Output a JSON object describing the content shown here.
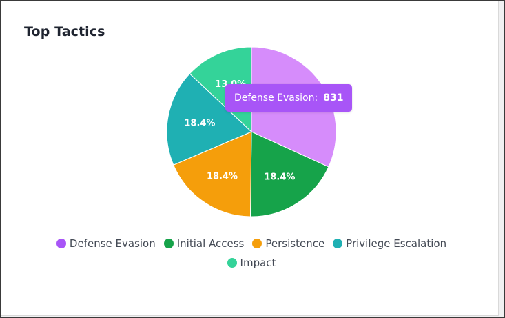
{
  "card": {
    "title": "Top Tactics"
  },
  "tooltip": {
    "label": "Defense Evasion:",
    "value": "831"
  },
  "chart_data": {
    "type": "pie",
    "title": "Top Tactics",
    "legend_position": "bottom",
    "slices": [
      {
        "name": "Defense Evasion",
        "percent": 31.8,
        "value": 831,
        "label": "",
        "color": "#d68cfb",
        "legend_color": "#a855f7"
      },
      {
        "name": "Initial Access",
        "percent": 18.4,
        "label": "18.4%",
        "color": "#16a34a",
        "legend_color": "#16a34a"
      },
      {
        "name": "Persistence",
        "percent": 18.4,
        "label": "18.4%",
        "color": "#f59e0b",
        "legend_color": "#f59e0b"
      },
      {
        "name": "Privilege Escalation",
        "percent": 18.4,
        "label": "18.4%",
        "color": "#1fb0b3",
        "legend_color": "#1fb0b3"
      },
      {
        "name": "Impact",
        "percent": 13.0,
        "label": "13.0%",
        "color": "#34d399",
        "legend_color": "#34d399"
      }
    ]
  }
}
